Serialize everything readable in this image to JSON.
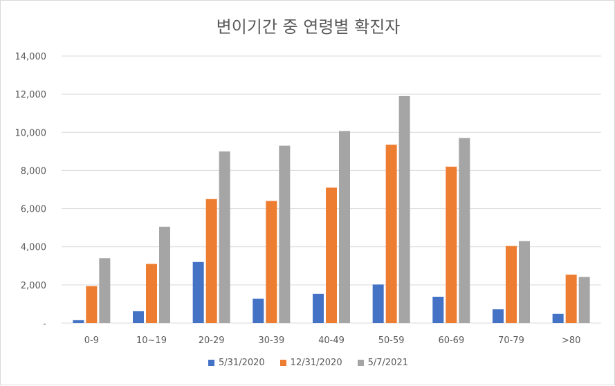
{
  "chart_data": {
    "type": "bar",
    "title": "변이기간 중 연령별 확진자",
    "categories": [
      "0-9",
      "10~19",
      "20-29",
      "30-39",
      "40-49",
      "50-59",
      "60-69",
      "70-79",
      ">80"
    ],
    "series": [
      {
        "name": "5/31/2020",
        "color": "#4472C4",
        "values": [
          150,
          620,
          3200,
          1280,
          1530,
          2020,
          1380,
          720,
          480
        ]
      },
      {
        "name": "12/31/2020",
        "color": "#ED7D31",
        "values": [
          1940,
          3100,
          6500,
          6400,
          7100,
          9350,
          8200,
          4040,
          2540
        ]
      },
      {
        "name": "5/7/2021",
        "color": "#A5A5A5",
        "values": [
          3400,
          5050,
          9000,
          9300,
          10070,
          11900,
          9700,
          4300,
          2420
        ]
      }
    ],
    "ylim": [
      0,
      14000
    ],
    "yticks": [
      0,
      2000,
      4000,
      6000,
      8000,
      10000,
      12000,
      14000
    ],
    "ytick_labels": [
      "-",
      "2,000",
      "4,000",
      "6,000",
      "8,000",
      "10,000",
      "12,000",
      "14,000"
    ],
    "grid": true,
    "legend_position": "bottom"
  }
}
